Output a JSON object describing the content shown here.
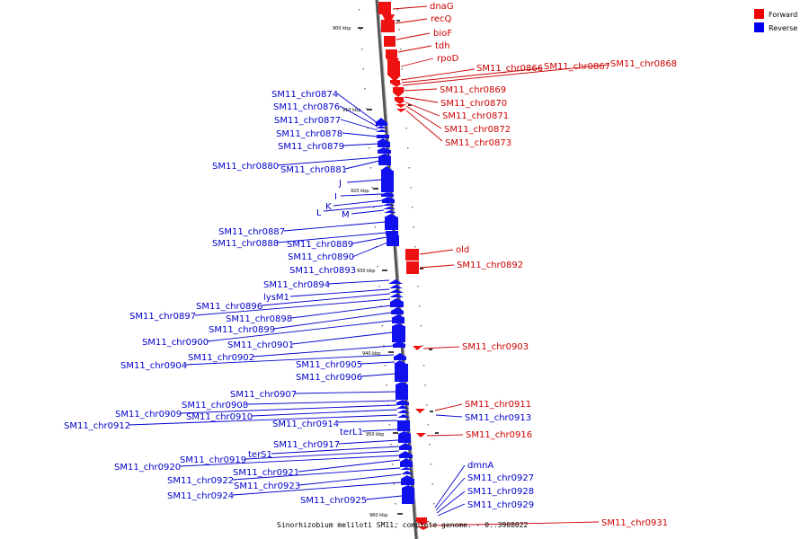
{
  "legend": {
    "forward_label": "Forward",
    "reverse_label": "Reverse",
    "forward_color": "#ee0000",
    "reverse_color": "#0000ee"
  },
  "caption": "Sinorhizobium meliloti SM11, complete genome. - 0..3908022",
  "ticks": [
    "900 kbp",
    "910 kbp",
    "920 kbp",
    "930 kbp",
    "940 kbp",
    "950 kbp",
    "960 kbp"
  ],
  "forward_labels": [
    "dnaG",
    "recQ",
    "bioF",
    "tdh",
    "rpoD",
    "SM11_chr0866",
    "SM11_chr0867",
    "SM11_chr0868",
    "SM11_chr0869",
    "SM11_chr0870",
    "SM11_chr0871",
    "SM11_chr0872",
    "SM11_chr0873",
    "old",
    "SM11_chr0892",
    "SM11_chr0903",
    "SM11_chr0911",
    "SM11_chr0916",
    "SM11_chr0931"
  ],
  "reverse_labels": [
    "SM11_chr0874",
    "SM11_chr0876",
    "SM11_chr0877",
    "SM11_chr0878",
    "SM11_chr0879",
    "SM11_chr0880",
    "SM11_chr0881",
    "J",
    "I",
    "K",
    "L",
    "M",
    "SM11_chr0887",
    "SM11_chr0888",
    "SM11_chr0889",
    "SM11_chr0890",
    "SM11_chr0893",
    "SM11_chr0894",
    "lysM1",
    "SM11_chr0896",
    "SM11_chr0897",
    "SM11_chr0898",
    "SM11_chr0899",
    "SM11_chr0900",
    "SM11_chr0901",
    "SM11_chr0902",
    "SM11_chr0904",
    "SM11_chr0905",
    "SM11_chr0906",
    "SM11_chr0907",
    "SM11_chr0908",
    "SM11_chr0909",
    "SM11_chr0910",
    "SM11_chr0912",
    "SM11_chr0914",
    "terL1",
    "SM11_chr0917",
    "terS1",
    "SM11_chr0919",
    "SM11_chr0920",
    "SM11_chr0921",
    "SM11_chr0922",
    "SM11_chr0923",
    "SM11_chr0924",
    "SM11_chr0925",
    "dmnA",
    "SM11_chr0927",
    "SM11_chr0928",
    "SM11_chr0929",
    "SM11_chr0913"
  ]
}
